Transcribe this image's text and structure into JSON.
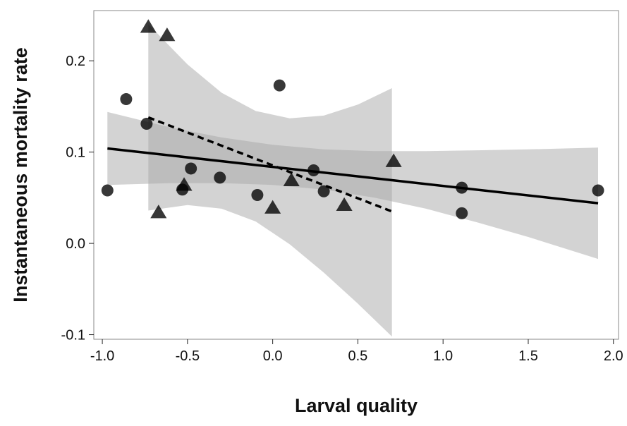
{
  "chart_data": {
    "type": "scatter",
    "xlabel": "Larval quality",
    "ylabel": "Instantaneous mortality rate",
    "xlim": [
      -1.05,
      2.03
    ],
    "ylim": [
      -0.105,
      0.255
    ],
    "x_ticks": [
      "-1.0",
      "-0.5",
      "0.0",
      "0.5",
      "1.0",
      "1.5",
      "2.0"
    ],
    "x_tick_values": [
      -1.0,
      -0.5,
      0.0,
      0.5,
      1.0,
      1.5,
      2.0
    ],
    "y_ticks": [
      "0.2",
      "0.1",
      "0.0",
      "-0.1"
    ],
    "y_tick_values": [
      0.2,
      0.1,
      0.0,
      -0.1
    ],
    "grid": false,
    "series": [
      {
        "marker": "circle",
        "color": "#000000",
        "points": [
          {
            "x": -0.97,
            "y": 0.058
          },
          {
            "x": -0.86,
            "y": 0.158
          },
          {
            "x": -0.74,
            "y": 0.131
          },
          {
            "x": -0.53,
            "y": 0.059
          },
          {
            "x": -0.48,
            "y": 0.082
          },
          {
            "x": -0.31,
            "y": 0.072
          },
          {
            "x": -0.09,
            "y": 0.053
          },
          {
            "x": 0.04,
            "y": 0.173
          },
          {
            "x": 0.24,
            "y": 0.08
          },
          {
            "x": 0.3,
            "y": 0.057
          },
          {
            "x": 1.11,
            "y": 0.061
          },
          {
            "x": 1.11,
            "y": 0.033
          },
          {
            "x": 1.91,
            "y": 0.058
          }
        ],
        "fit": {
          "x": [
            -0.97,
            1.91
          ],
          "y": [
            0.104,
            0.044
          ],
          "style": "solid"
        },
        "band": {
          "x": [
            -0.97,
            -0.6,
            -0.3,
            0.0,
            0.3,
            0.6,
            0.9,
            1.2,
            1.5,
            1.91
          ],
          "upper": [
            0.144,
            0.127,
            0.116,
            0.108,
            0.103,
            0.101,
            0.101,
            0.102,
            0.103,
            0.105
          ],
          "lower": [
            0.064,
            0.066,
            0.066,
            0.064,
            0.059,
            0.05,
            0.038,
            0.023,
            0.007,
            -0.017
          ]
        }
      },
      {
        "marker": "triangle",
        "color": "#000000",
        "points": [
          {
            "x": -0.73,
            "y": 0.237
          },
          {
            "x": -0.67,
            "y": 0.034
          },
          {
            "x": -0.62,
            "y": 0.228
          },
          {
            "x": -0.52,
            "y": 0.064
          },
          {
            "x": 0.0,
            "y": 0.039
          },
          {
            "x": 0.11,
            "y": 0.069
          },
          {
            "x": 0.42,
            "y": 0.042
          },
          {
            "x": 0.71,
            "y": 0.09
          }
        ],
        "fit": {
          "x": [
            -0.73,
            0.7
          ],
          "y": [
            0.138,
            0.035
          ],
          "style": "dashed"
        },
        "band": {
          "x": [
            -0.73,
            -0.5,
            -0.3,
            -0.1,
            0.1,
            0.3,
            0.5,
            0.7
          ],
          "upper": [
            0.24,
            0.196,
            0.165,
            0.145,
            0.137,
            0.14,
            0.152,
            0.17
          ],
          "lower": [
            0.036,
            0.042,
            0.038,
            0.024,
            -0.001,
            -0.032,
            -0.066,
            -0.102
          ]
        }
      }
    ]
  }
}
